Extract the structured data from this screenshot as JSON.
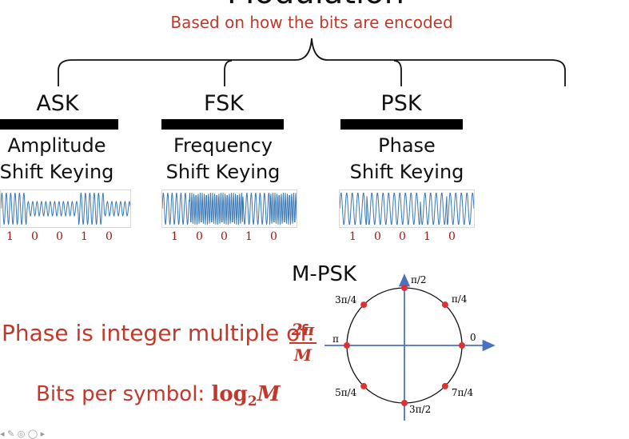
{
  "title": "Modulation",
  "subtitle": "Based on how the bits are encoded",
  "modulations": [
    {
      "name": "ASK",
      "line1": "Amplitude",
      "line2": "Shift Keying",
      "bits": [
        "1",
        "0",
        "0",
        "1",
        "0"
      ]
    },
    {
      "name": "FSK",
      "line1": "Frequency",
      "line2": "Shift Keying",
      "bits": [
        "1",
        "0",
        "0",
        "1",
        "0"
      ]
    },
    {
      "name": "PSK",
      "line1": "Phase",
      "line2": "Shift Keying",
      "bits": [
        "1",
        "0",
        "0",
        "1",
        "0"
      ]
    }
  ],
  "phase_text": "Phase is integer multiple of:",
  "phase_fraction": {
    "numerator": "2π",
    "denominator": "M"
  },
  "bits_text": "Bits per symbol:",
  "bits_formula": {
    "log": "log",
    "base": "2",
    "arg": "M"
  },
  "mpsk": {
    "label": "M-PSK",
    "points": [
      {
        "label": "0"
      },
      {
        "label": "π/4"
      },
      {
        "label": "π/2"
      },
      {
        "label": "3π/4"
      },
      {
        "label": "π"
      },
      {
        "label": "5π/4"
      },
      {
        "label": "3π/2"
      },
      {
        "label": "7π/4"
      }
    ]
  },
  "colors": {
    "accent": "#c0392b",
    "axis": "#4a72c4",
    "dot": "#e03030",
    "wave": "#3a78b8"
  }
}
